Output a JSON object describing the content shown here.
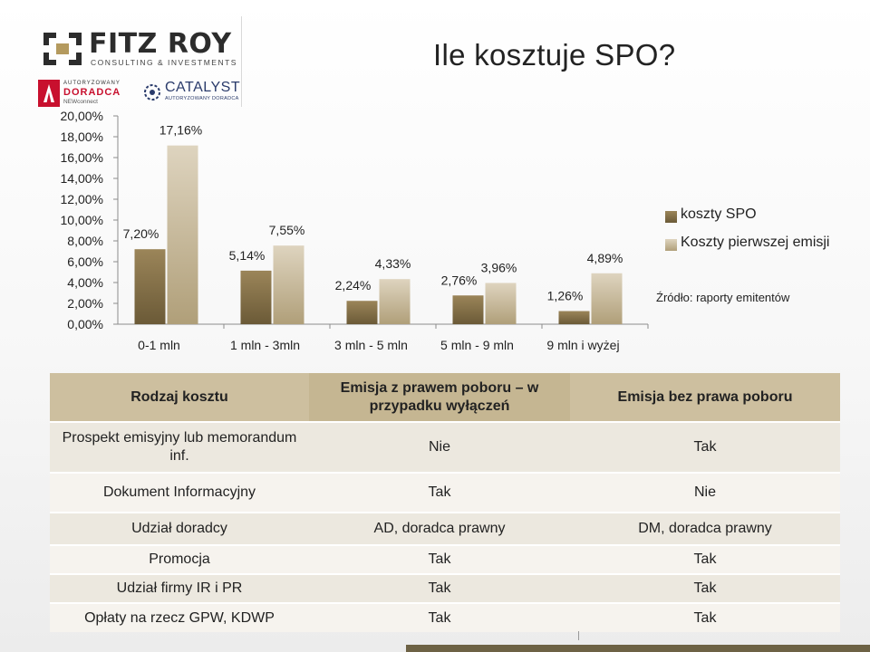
{
  "brand": {
    "name": "FITZ ROY",
    "tagline": "CONSULTING & INVESTMENTS",
    "partner_newconnect": {
      "line1": "AUTORYZOWANY",
      "line2": "DORADCA",
      "line3": "NEWconnect"
    },
    "partner_catalyst": {
      "line1": "CATALYST",
      "line2": "AUTORYZOWANY DORADCA"
    }
  },
  "slide_title": "Ile kosztuje SPO?",
  "colors": {
    "series_spo_top": "#9b8559",
    "series_spo_bottom": "#6b5a37",
    "series_first_top": "#ded4bf",
    "series_first_bottom": "#b09f79",
    "header_bg": "#cdbf9f",
    "row_bg": "#ece8df",
    "strip": "#6d6245"
  },
  "chart_data": {
    "type": "bar",
    "categories": [
      "0-1 mln",
      "1 mln - 3mln",
      "3 mln - 5 mln",
      "5 mln - 9 mln",
      "9 mln i wyżej"
    ],
    "series": [
      {
        "name": "koszty SPO",
        "values": [
          7.2,
          5.14,
          2.24,
          2.76,
          1.26
        ],
        "labels": [
          "7,20%",
          "5,14%",
          "2,24%",
          "2,76%",
          "1,26%"
        ]
      },
      {
        "name": "Koszty pierwszej emisji",
        "values": [
          17.16,
          7.55,
          4.33,
          3.96,
          4.89
        ],
        "labels": [
          "17,16%",
          "7,55%",
          "4,33%",
          "3,96%",
          "4,89%"
        ]
      }
    ],
    "ylim": [
      0,
      20
    ],
    "yticks": [
      "0,00%",
      "2,00%",
      "4,00%",
      "6,00%",
      "8,00%",
      "10,00%",
      "12,00%",
      "14,00%",
      "16,00%",
      "18,00%",
      "20,00%"
    ],
    "legend_position": "right",
    "grid": false,
    "source_note": "Źródło: raporty emitentów"
  },
  "table": {
    "headers": [
      "Rodzaj kosztu",
      "Emisja z prawem poboru – w przypadku wyłączeń",
      "Emisja bez prawa poboru"
    ],
    "rows": [
      [
        "Prospekt emisyjny lub memorandum inf.",
        "Nie",
        "Tak"
      ],
      [
        "Dokument Informacyjny",
        "Tak",
        "Nie"
      ],
      [
        "Udział doradcy",
        "AD, doradca prawny",
        "DM, doradca prawny"
      ],
      [
        "Promocja",
        "Tak",
        "Tak"
      ],
      [
        "Udział firmy IR i PR",
        "Tak",
        "Tak"
      ],
      [
        "Opłaty na rzecz GPW, KDWP",
        "Tak",
        "Tak"
      ]
    ]
  }
}
